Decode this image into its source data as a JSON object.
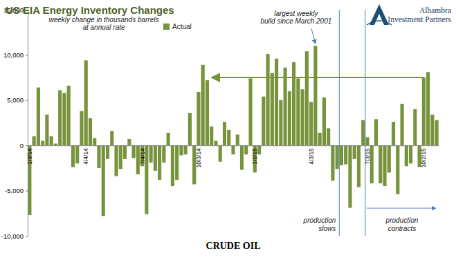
{
  "chart_data": {
    "type": "bar",
    "title": "US EIA Energy Inventory Changes",
    "subtitle": [
      "weekly change in thousands barrels",
      "at annual rate"
    ],
    "logo": [
      "Alhambra",
      "Investment Partners"
    ],
    "x_label": "CRUDE OIL",
    "categories": [
      "1/3/14",
      null,
      null,
      null,
      null,
      null,
      null,
      null,
      null,
      null,
      null,
      null,
      null,
      "4/4/14",
      null,
      null,
      null,
      null,
      null,
      null,
      null,
      null,
      null,
      null,
      null,
      null,
      "7/4/14",
      null,
      null,
      null,
      null,
      null,
      null,
      null,
      null,
      null,
      null,
      null,
      null,
      "10/3/14",
      null,
      null,
      null,
      null,
      null,
      null,
      null,
      null,
      null,
      null,
      null,
      null,
      "1/2/15",
      null,
      null,
      null,
      null,
      null,
      null,
      null,
      null,
      null,
      null,
      null,
      null,
      "4/3/15",
      null,
      null,
      null,
      null,
      null,
      null,
      null,
      null,
      null,
      null,
      null,
      null,
      "7/3/15",
      null,
      null,
      null,
      null,
      null,
      null,
      null,
      null,
      null,
      null,
      null,
      null,
      "10/2/15",
      null,
      null,
      null
    ],
    "series": [
      {
        "name": "Actual",
        "color": "#77933c",
        "values": [
          -7700,
          1000,
          6400,
          500,
          3400,
          1000,
          200,
          6100,
          5800,
          6600,
          -2400,
          -2000,
          3800,
          9400,
          3000,
          800,
          -2500,
          -7800,
          -1500,
          1600,
          -3400,
          -2600,
          -1500,
          700,
          -1400,
          -3200,
          -2300,
          -7600,
          -1900,
          -2800,
          -3800,
          -1900,
          1400,
          -4500,
          -3800,
          -1100,
          -1000,
          3600,
          -4300,
          5900,
          8900,
          7200,
          2100,
          500,
          -1800,
          2600,
          1700,
          -1000,
          1200,
          -2700,
          -1000,
          7400,
          -3000,
          -1000,
          5400,
          10100,
          8000,
          9600,
          5000,
          8600,
          6000,
          9200,
          7400,
          6200,
          10400,
          4800,
          11000,
          1400,
          5300,
          1900,
          -3900,
          -2600,
          -2200,
          -2100,
          -6900,
          -1500,
          -4600,
          2800,
          900,
          -4200,
          2900,
          -4200,
          -4500,
          -3000,
          2600,
          -5400,
          4600,
          -2300,
          -2000,
          4000,
          -2400,
          7500,
          8100,
          3400,
          2800
        ]
      }
    ],
    "ylim": [
      -10000,
      15000
    ],
    "yticks": [
      {
        "value": -10000,
        "label": "-10,000"
      },
      {
        "value": -5000,
        "label": "-5,000"
      },
      0,
      {
        "value": 5000,
        "label": "5,000"
      },
      {
        "value": 10000,
        "label": "10,000"
      },
      {
        "value": 15000,
        "label": "15,000"
      }
    ],
    "grid": false,
    "legend": "top",
    "annotations": [
      {
        "type": "callout",
        "text": [
          "largest weekly",
          "build since March 2001"
        ],
        "x": 66
      },
      {
        "type": "marker_line",
        "text": [
          "production",
          "slows"
        ],
        "x": 72
      },
      {
        "type": "marker_range",
        "text": [
          "production",
          "contracts"
        ],
        "x": 78
      },
      {
        "type": "level_arrow",
        "x": [
          91,
          42
        ],
        "y": 7500
      }
    ]
  }
}
